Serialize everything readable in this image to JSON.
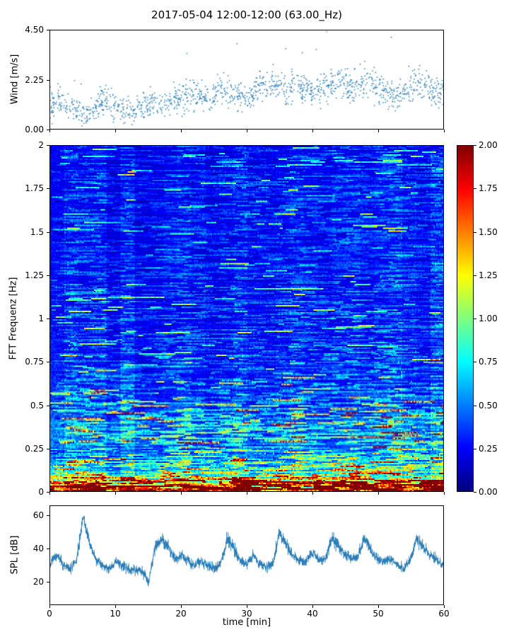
{
  "title": "2017-05-04 12:00-12:00 (63.00_Hz)",
  "xlabel": "time [min]",
  "x_ticks": {
    "values": [
      0,
      10,
      20,
      30,
      40,
      50,
      60
    ],
    "labels": [
      "0",
      "10",
      "20",
      "30",
      "40",
      "50",
      "60"
    ]
  },
  "accent_color": "#1f77b4",
  "chart_data": [
    {
      "type": "scatter",
      "name": "wind",
      "ylabel": "Wind [m/s]",
      "xlim": [
        0,
        60
      ],
      "ylim": [
        0,
        4.5
      ],
      "ytick_values": [
        0,
        2.25,
        4.5
      ],
      "ytick_labels": [
        "0.00",
        "2.25",
        "4.50"
      ],
      "marker_color": "#1f77b4",
      "n_points": 1350,
      "profile_t_step": 2,
      "profile": [
        0.9,
        1.3,
        0.8,
        0.7,
        1.4,
        1.1,
        0.8,
        1.0,
        1.3,
        1.1,
        1.5,
        1.6,
        1.3,
        1.8,
        1.6,
        1.4,
        1.9,
        2.1,
        1.7,
        2.0,
        1.6,
        1.9,
        2.2,
        1.8,
        2.3,
        1.9,
        1.5,
        1.7,
        2.1,
        1.8,
        1.7
      ],
      "noise_sigma": 0.55
    },
    {
      "type": "heatmap",
      "name": "spectrogram",
      "ylabel": "FFT Frequenz [Hz]",
      "xlim": [
        0,
        60
      ],
      "ylim": [
        0,
        2
      ],
      "ytick_values": [
        0,
        0.25,
        0.5,
        0.75,
        1,
        1.25,
        1.5,
        1.75,
        2
      ],
      "ytick_labels": [
        "0",
        "0.25",
        "0.5",
        "0.75",
        "1",
        "1.25",
        "1.5",
        "1.75",
        "2"
      ],
      "colormap": "jet",
      "clim": [
        0,
        2
      ],
      "colorbar_tick_values": [
        0,
        0.25,
        0.5,
        0.75,
        1,
        1.25,
        1.5,
        1.75,
        2
      ],
      "colorbar_tick_labels": [
        "0.00",
        "0.25",
        "0.50",
        "0.75",
        "1.00",
        "1.25",
        "1.50",
        "1.75",
        "2.00"
      ],
      "freq_intensity_profile": [
        [
          0,
          2.6
        ],
        [
          0.02,
          2.3
        ],
        [
          0.04,
          1.9
        ],
        [
          0.06,
          1.4
        ],
        [
          0.09,
          1.0
        ],
        [
          0.13,
          0.78
        ],
        [
          0.18,
          0.62
        ],
        [
          0.25,
          0.54
        ],
        [
          0.32,
          0.52
        ],
        [
          0.4,
          0.55
        ],
        [
          0.48,
          0.42
        ],
        [
          0.6,
          0.36
        ],
        [
          0.8,
          0.32
        ],
        [
          1.0,
          0.3
        ],
        [
          1.3,
          0.28
        ],
        [
          1.6,
          0.27
        ],
        [
          2.0,
          0.26
        ]
      ]
    },
    {
      "type": "line",
      "name": "spl",
      "ylabel": "SPL [dB]",
      "xlim": [
        0,
        60
      ],
      "ylim": [
        6,
        66
      ],
      "ytick_values": [
        20,
        40,
        60
      ],
      "ytick_labels": [
        "20",
        "40",
        "60"
      ],
      "line_color": "#1f77b4",
      "profile_t_step": 1,
      "profile": [
        32,
        36,
        30,
        28,
        33,
        60,
        42,
        33,
        30,
        28,
        33,
        30,
        28,
        27,
        26,
        20,
        42,
        46,
        41,
        34,
        36,
        33,
        30,
        32,
        30,
        28,
        31,
        46,
        41,
        33,
        31,
        36,
        31,
        29,
        31,
        50,
        43,
        36,
        33,
        32,
        38,
        34,
        33,
        47,
        42,
        36,
        34,
        35,
        47,
        39,
        34,
        32,
        35,
        30,
        28,
        33,
        47,
        41,
        36,
        34,
        30
      ],
      "noise_sigma": 2.5
    }
  ]
}
